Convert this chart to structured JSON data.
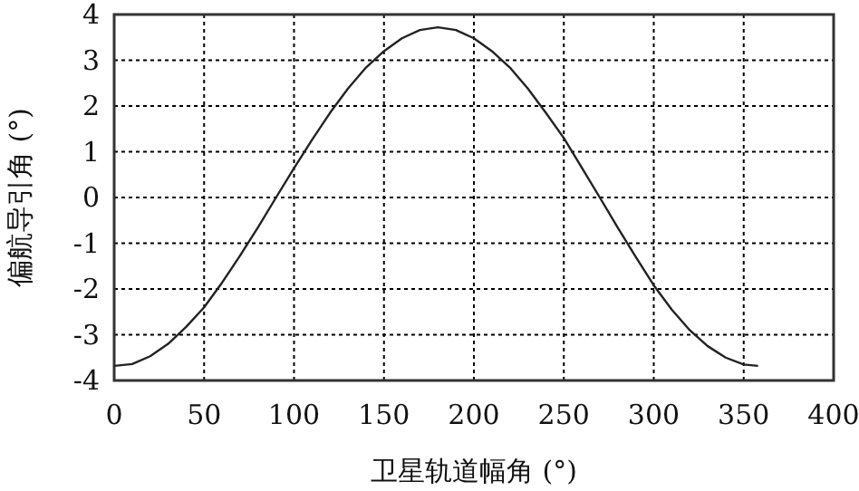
{
  "chart_data": {
    "type": "line",
    "xlabel": "卫星轨道幅角 (°)",
    "ylabel": "偏航导引角 (°)",
    "x": [
      0,
      10,
      20,
      30,
      40,
      50,
      60,
      70,
      80,
      90,
      100,
      110,
      120,
      130,
      140,
      150,
      160,
      170,
      180,
      190,
      200,
      210,
      220,
      230,
      240,
      250,
      260,
      270,
      280,
      290,
      300,
      310,
      320,
      330,
      340,
      350,
      358
    ],
    "values": [
      -3.68,
      -3.64,
      -3.47,
      -3.2,
      -2.83,
      -2.4,
      -1.86,
      -1.27,
      -0.65,
      0,
      0.64,
      1.26,
      1.85,
      2.38,
      2.84,
      3.2,
      3.48,
      3.66,
      3.72,
      3.66,
      3.48,
      3.2,
      2.84,
      2.38,
      1.85,
      1.3,
      0.65,
      0,
      -0.66,
      -1.3,
      -1.92,
      -2.45,
      -2.9,
      -3.25,
      -3.5,
      -3.65,
      -3.68
    ],
    "color": "#222222",
    "xlim": [
      0,
      400
    ],
    "ylim": [
      -4,
      4
    ],
    "xticks": [
      0,
      50,
      100,
      150,
      200,
      250,
      300,
      350,
      400
    ],
    "yticks": [
      -4,
      -3,
      -2,
      -1,
      0,
      1,
      2,
      3,
      4
    ],
    "grid": true
  }
}
